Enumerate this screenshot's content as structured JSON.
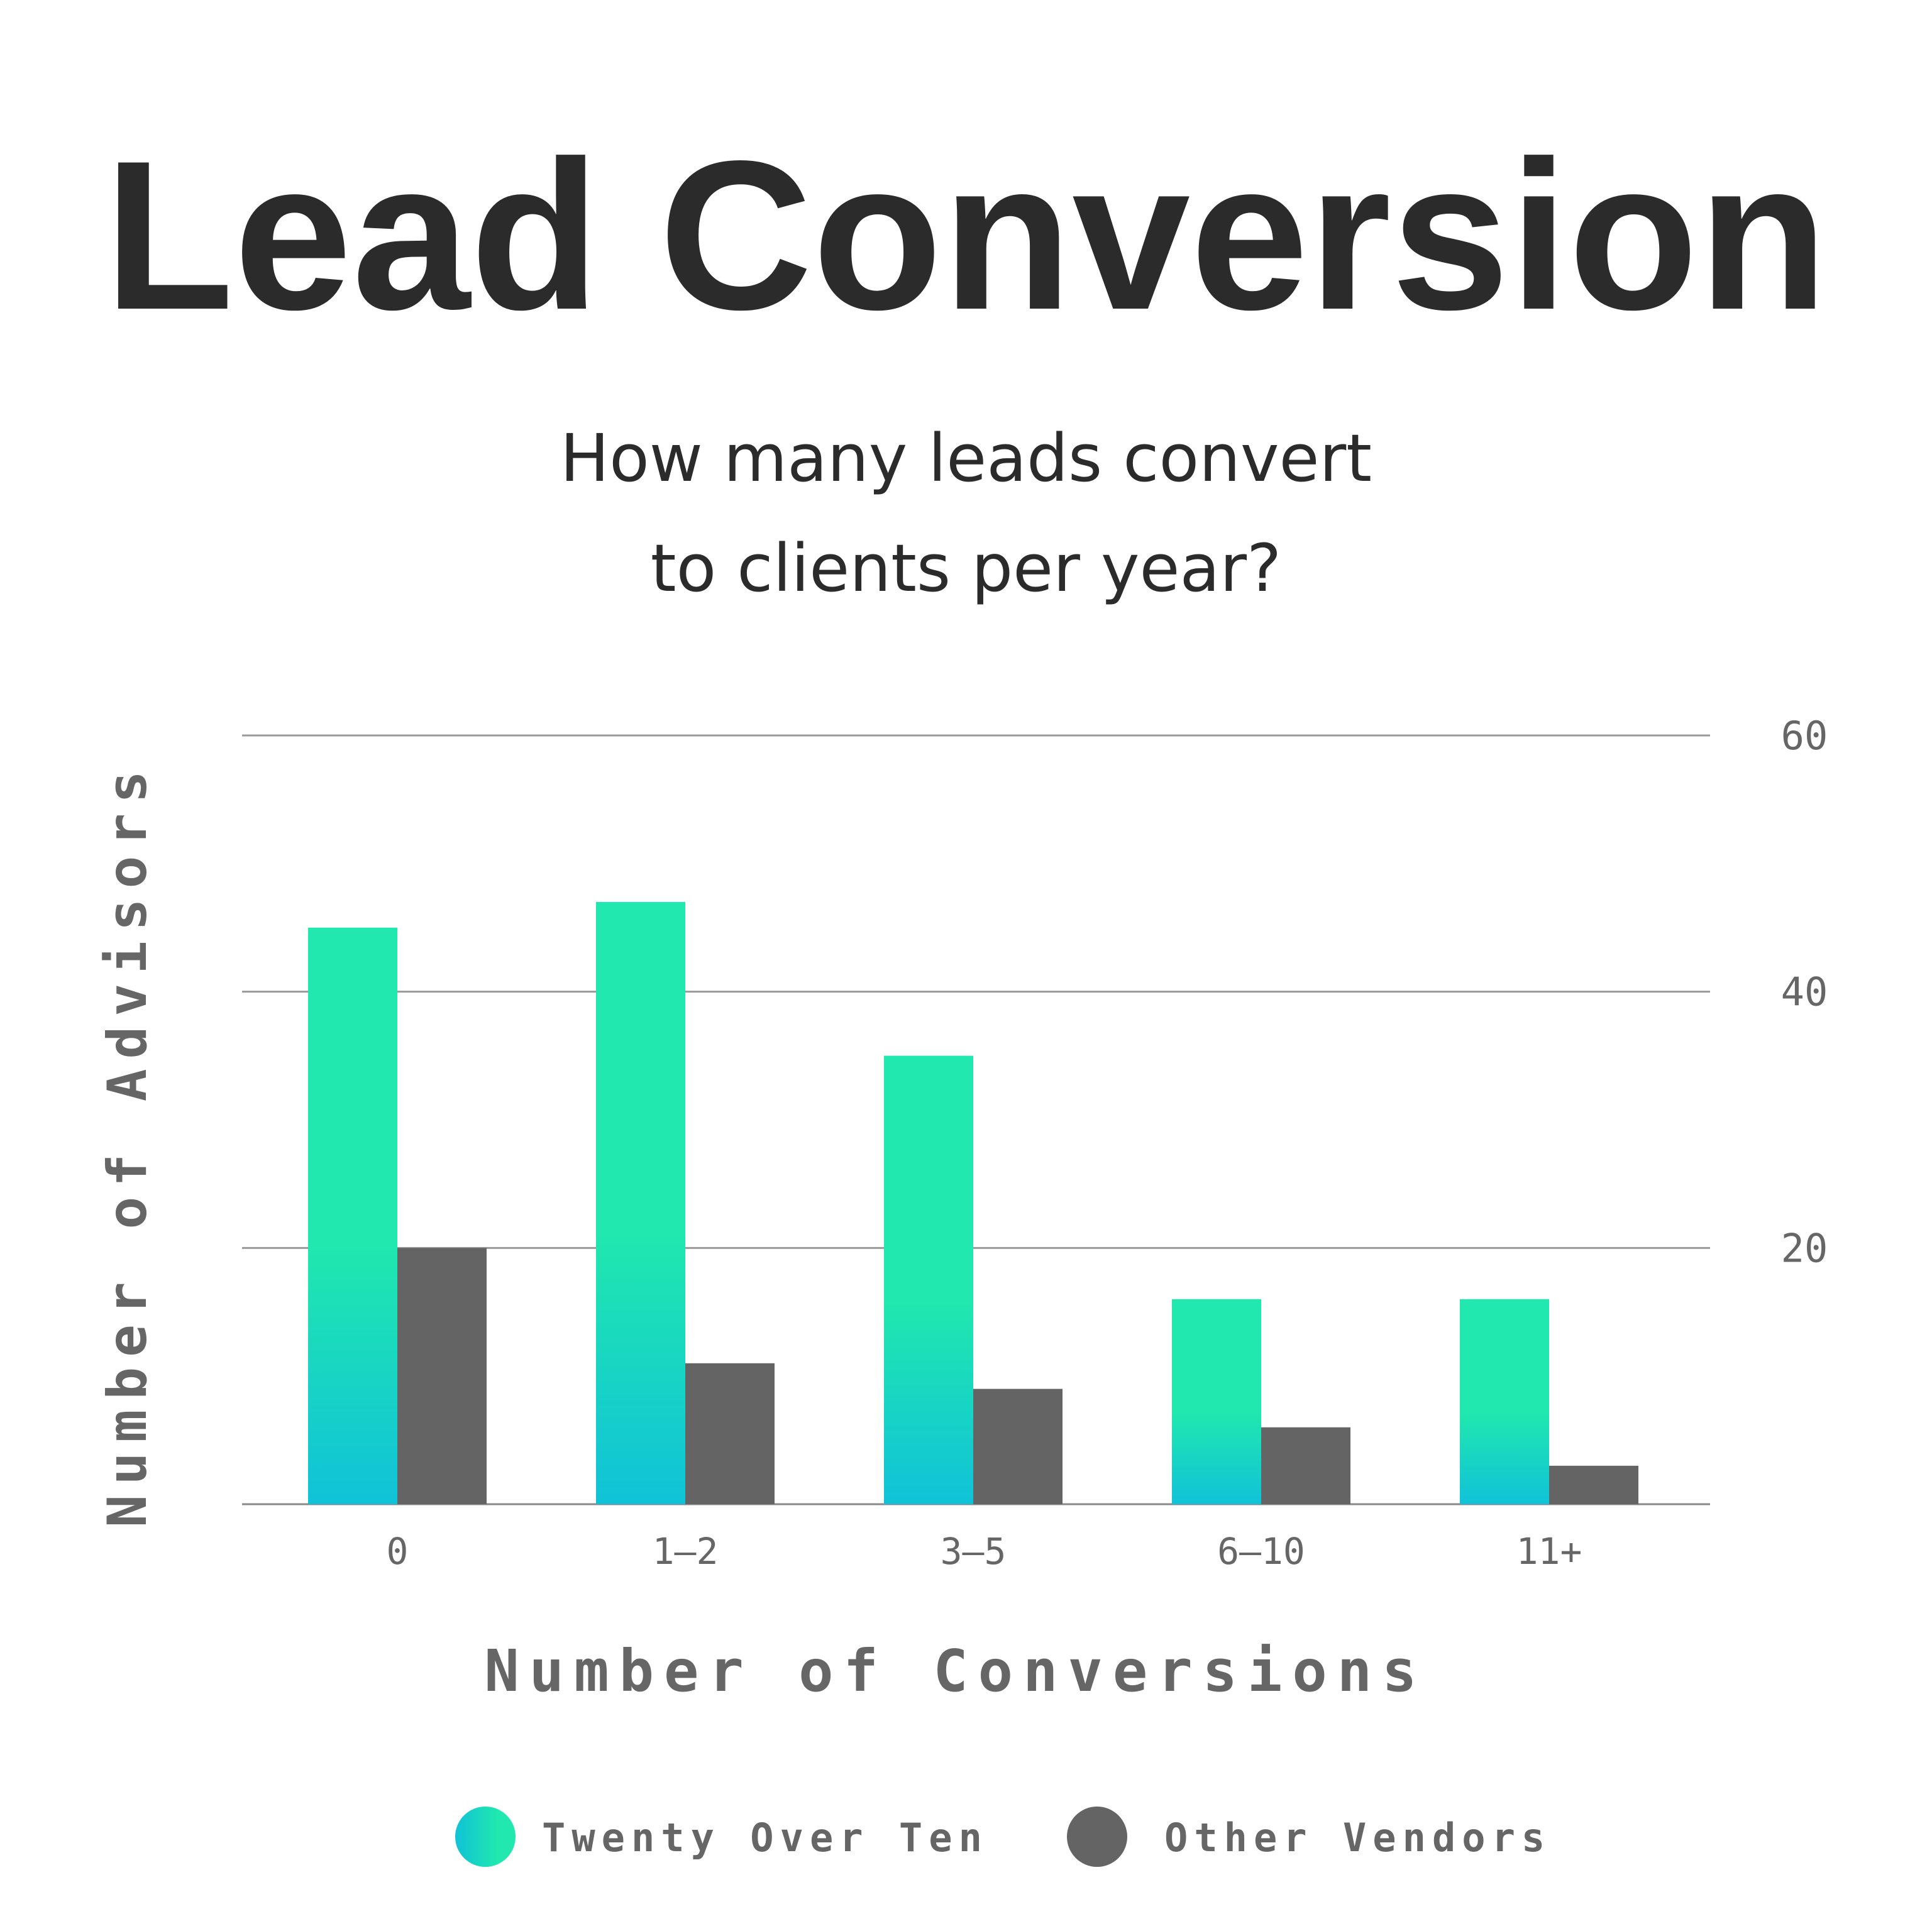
{
  "chart_data": {
    "type": "bar",
    "title": "Lead Conversion",
    "subtitle": [
      "How many leads convert",
      "to clients per year?"
    ],
    "xlabel": "Number of Conversions",
    "ylabel": "Number of Advisors",
    "categories": [
      "0",
      "1–2",
      "3–5",
      "6–10",
      "11+"
    ],
    "series": [
      {
        "name": "Twenty Over Ten",
        "values": [
          45,
          47,
          35,
          16,
          16
        ],
        "color": "#20e8ae",
        "color_bottom": "#10c2d8"
      },
      {
        "name": "Other Vendors",
        "values": [
          20,
          11,
          9,
          6,
          3
        ],
        "color": "#646464"
      }
    ],
    "ylim": [
      0,
      60
    ],
    "yticks": [
      20,
      40,
      60
    ],
    "ytick_side": "right",
    "grid": true,
    "legend": "bottom"
  }
}
